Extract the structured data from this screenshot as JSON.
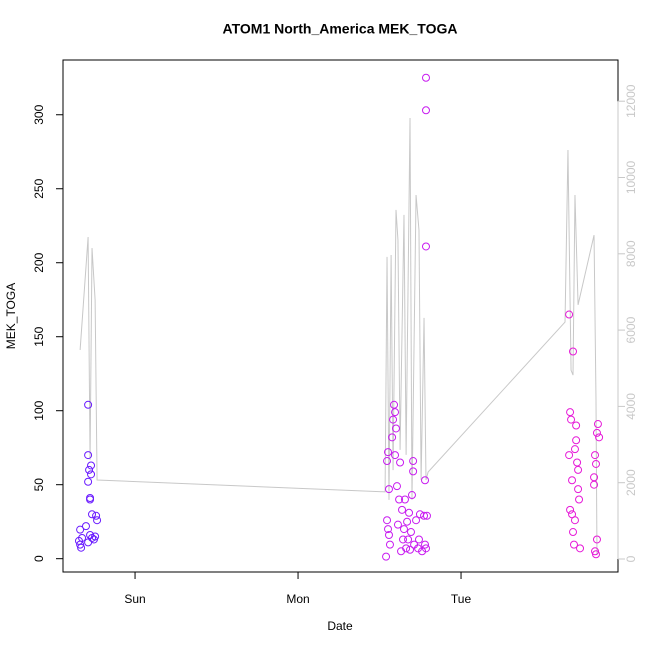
{
  "chart_data": {
    "type": "scatter",
    "title": "ATOM1 North_America MEK_TOGA",
    "xlabel": "Date",
    "ylabel": "MEK_TOGA",
    "xlim": [
      -0.442,
      2.963
    ],
    "ylim": [
      -9,
      337
    ],
    "y2lim": [
      -341,
      13080
    ],
    "xticks": [
      {
        "value": 0,
        "label": "Sun"
      },
      {
        "value": 1,
        "label": "Mon"
      },
      {
        "value": 2,
        "label": "Tue"
      }
    ],
    "yticks": [
      0,
      50,
      100,
      150,
      200,
      250,
      300
    ],
    "y2ticks": [
      0,
      2000,
      4000,
      6000,
      8000,
      10000,
      12000
    ],
    "series": [
      {
        "type": "line",
        "axis": "y2",
        "color": "#c8c8c8",
        "x": [
          -0.337,
          -0.288,
          -0.276,
          -0.264,
          -0.245,
          -0.233,
          1.534,
          1.546,
          1.558,
          1.571,
          1.583,
          1.601,
          1.613,
          1.626,
          1.65,
          1.663,
          1.687,
          1.699,
          1.724,
          1.742,
          1.755,
          1.773,
          1.785,
          1.798,
          2.638,
          2.656,
          2.675,
          2.687,
          2.699,
          2.718,
          2.816,
          2.828,
          2.834
        ],
        "values": [
          5480,
          8440,
          2600,
          8150,
          6790,
          2070,
          1760,
          7920,
          1550,
          7970,
          2330,
          9150,
          8360,
          2860,
          9020,
          2730,
          11560,
          1550,
          9540,
          8620,
          2070,
          6320,
          2070,
          2280,
          6210,
          10720,
          4950,
          4820,
          9540,
          6660,
          8490,
          4170,
          100
        ]
      },
      {
        "color": "#6a1bff",
        "x": [
          -0.337,
          -0.337,
          -0.331,
          -0.325,
          -0.344,
          -0.288,
          -0.288,
          -0.288,
          -0.282,
          -0.276,
          -0.27,
          -0.276,
          -0.264,
          -0.264,
          -0.252,
          -0.239,
          -0.233,
          -0.245,
          -0.301,
          -0.288,
          -0.276,
          -0.27
        ],
        "values": [
          19.6,
          9.5,
          7.4,
          14,
          12,
          104,
          70,
          52,
          60,
          41,
          63,
          16,
          30,
          14,
          13,
          29,
          26,
          15,
          22,
          11,
          40,
          57
        ]
      },
      {
        "color": "#c81cf0",
        "x": [
          1.54,
          1.546,
          1.552,
          1.558,
          1.546,
          1.552,
          1.558,
          1.564,
          1.577,
          1.583,
          1.589,
          1.595,
          1.595,
          1.601,
          1.607,
          1.613,
          1.62,
          1.626,
          1.632,
          1.638,
          1.644,
          1.65,
          1.656,
          1.663,
          1.669,
          1.675,
          1.681,
          1.687,
          1.693,
          1.699,
          1.706,
          1.706,
          1.712,
          1.724,
          1.736,
          1.742,
          1.748,
          1.761,
          1.773,
          1.785,
          1.785,
          1.785,
          1.779,
          1.785,
          1.791,
          1.779
        ],
        "values": [
          1.4,
          66,
          72,
          47,
          26,
          20,
          16,
          9.5,
          82,
          94,
          104,
          99,
          70,
          88,
          49,
          23,
          40,
          65,
          5,
          33,
          13,
          20,
          40,
          7,
          25,
          13,
          31,
          6,
          18,
          43,
          59,
          66,
          9.5,
          26,
          7,
          13,
          30,
          5,
          29,
          325,
          303,
          211,
          53,
          7,
          29,
          9.5
        ]
      },
      {
        "color": "#e61ad8",
        "x": [
          2.663,
          2.687,
          2.669,
          2.675,
          2.663,
          2.681,
          2.669,
          2.681,
          2.693,
          2.706,
          2.706,
          2.699,
          2.712,
          2.718,
          2.718,
          2.724,
          2.73,
          2.699,
          2.687,
          2.816,
          2.822,
          2.828,
          2.834,
          2.834,
          2.84,
          2.847,
          2.822,
          2.816,
          2.828
        ],
        "values": [
          165,
          140,
          99,
          94,
          70,
          53,
          33,
          30,
          9.5,
          90,
          80,
          74,
          65,
          60,
          47,
          40,
          7,
          26,
          18,
          55,
          70,
          64,
          85,
          13,
          91,
          82,
          5,
          50,
          3
        ]
      }
    ]
  }
}
